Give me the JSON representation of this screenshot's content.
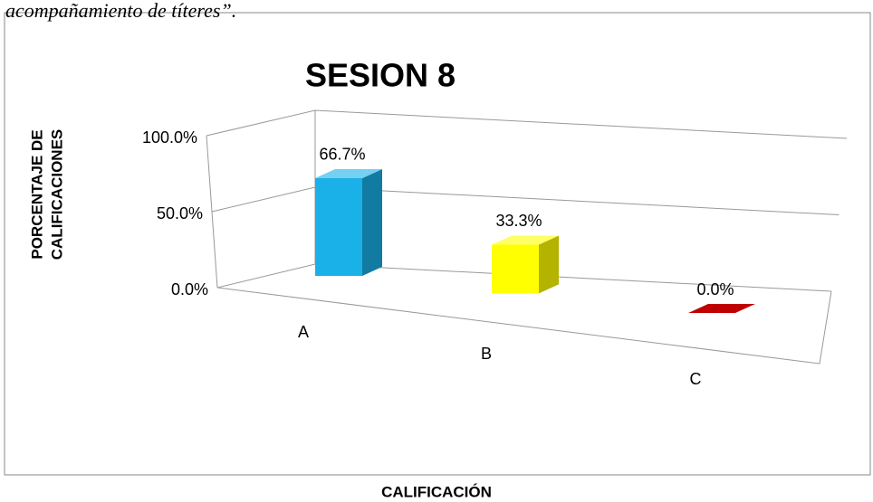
{
  "caption": "acompañamiento de títeres”.",
  "chart_data": {
    "type": "bar3d",
    "title": "SESION 8",
    "ylabel": [
      "PORCENTAJE DE",
      "CALIFICACIONES"
    ],
    "xlabel": "CALIFICACIÓN",
    "categories": [
      "A",
      "B",
      "C"
    ],
    "values": [
      66.7,
      33.3,
      0.0
    ],
    "value_labels": [
      "66.7%",
      "33.3%",
      "0.0%"
    ],
    "colors": [
      "#1ab0e8",
      "#ffff00",
      "#c00000"
    ],
    "ylim": [
      0,
      100
    ],
    "yticks": [
      {
        "value": 0,
        "label": "0.0%"
      },
      {
        "value": 50,
        "label": "50.0%"
      },
      {
        "value": 100,
        "label": "100.0%"
      }
    ],
    "grid": true
  }
}
